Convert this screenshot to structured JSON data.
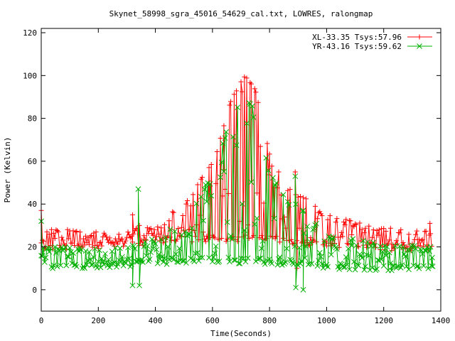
{
  "chart_data": {
    "type": "line",
    "title": "Skynet_58998_sgra_45016_54629_cal.txt, LOWRES, ralongmap",
    "xlabel": "Time(Seconds)",
    "ylabel": "Power (Kelvin)",
    "xlim": [
      0,
      1400
    ],
    "ylim": [
      -10,
      122
    ],
    "x_ticks": [
      0,
      200,
      400,
      600,
      800,
      1000,
      1200,
      1400
    ],
    "y_ticks": [
      0,
      20,
      40,
      60,
      80,
      100,
      120
    ],
    "grid": false,
    "legend_position": "top-right",
    "x_sample_step": 4,
    "series": [
      {
        "name": "XL-33.35 Tsys:57.96",
        "color": "#ff0000",
        "marker": "plus",
        "x_range": [
          0,
          1368
        ],
        "baseline": [
          [
            0,
            20
          ],
          [
            300,
            21
          ],
          [
            400,
            23
          ],
          [
            550,
            24
          ],
          [
            650,
            24
          ],
          [
            800,
            24
          ],
          [
            900,
            22
          ],
          [
            1000,
            21
          ],
          [
            1368,
            19
          ]
        ],
        "upper": [
          [
            0,
            29
          ],
          [
            200,
            27
          ],
          [
            300,
            28
          ],
          [
            400,
            31
          ],
          [
            500,
            40
          ],
          [
            600,
            60
          ],
          [
            650,
            83
          ],
          [
            700,
            101
          ],
          [
            750,
            96
          ],
          [
            800,
            64
          ],
          [
            850,
            50
          ],
          [
            900,
            46
          ],
          [
            1000,
            35
          ],
          [
            1100,
            32
          ],
          [
            1200,
            30
          ],
          [
            1368,
            27
          ]
        ],
        "spikes": [
          [
            0,
            37
          ],
          [
            320,
            35
          ],
          [
            344,
            30
          ],
          [
            890,
            55
          ],
          [
            918,
            43
          ],
          [
            1362,
            31
          ]
        ],
        "dips": [
          [
            896,
            10
          ]
        ]
      },
      {
        "name": "YR-43.16 Tsys:59.62",
        "color": "#00b000",
        "marker": "cross",
        "x_range": [
          0,
          1372
        ],
        "baseline": [
          [
            0,
            11
          ],
          [
            300,
            12
          ],
          [
            400,
            13
          ],
          [
            500,
            14
          ],
          [
            650,
            14
          ],
          [
            800,
            13
          ],
          [
            900,
            12
          ],
          [
            1000,
            11
          ],
          [
            1372,
            10
          ]
        ],
        "upper": [
          [
            0,
            21
          ],
          [
            200,
            19
          ],
          [
            300,
            21
          ],
          [
            400,
            24
          ],
          [
            500,
            33
          ],
          [
            600,
            55
          ],
          [
            650,
            75
          ],
          [
            700,
            92
          ],
          [
            750,
            86
          ],
          [
            800,
            56
          ],
          [
            850,
            44
          ],
          [
            900,
            40
          ],
          [
            1000,
            27
          ],
          [
            1100,
            24
          ],
          [
            1200,
            22
          ],
          [
            1372,
            20
          ]
        ],
        "spikes": [
          [
            0,
            32
          ],
          [
            340,
            47
          ],
          [
            890,
            53
          ],
          [
            918,
            37
          ],
          [
            1370,
            15
          ]
        ],
        "dips": [
          [
            320,
            2
          ],
          [
            344,
            2
          ],
          [
            892,
            1
          ],
          [
            918,
            0
          ]
        ]
      }
    ]
  }
}
